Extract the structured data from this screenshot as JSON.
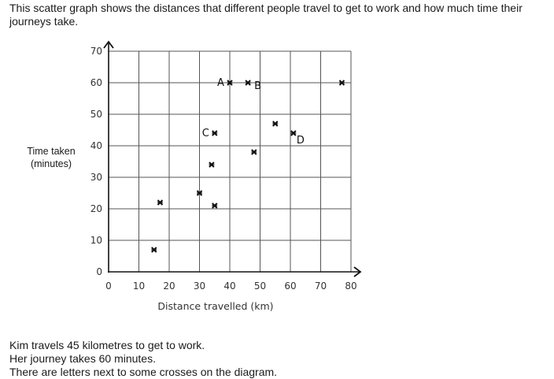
{
  "intro_text": "This scatter graph shows the distances that different people travel to get to work and how much time their journeys take.",
  "footer_lines": [
    "Kim travels 45 kilometres to get to work.",
    "Her journey takes 60 minutes.",
    "There are letters next to some crosses on the diagram."
  ],
  "chart_data": {
    "type": "scatter",
    "title": "",
    "xlabel": "Distance travelled (km)",
    "ylabel_lines": [
      "Time taken",
      "(minutes)"
    ],
    "xlim": [
      0,
      80
    ],
    "ylim": [
      0,
      70
    ],
    "xticks": [
      0,
      10,
      20,
      30,
      40,
      50,
      60,
      70,
      80
    ],
    "yticks": [
      0,
      10,
      20,
      30,
      40,
      50,
      60,
      70
    ],
    "grid": true,
    "colors": {
      "axis": "#111111",
      "grid": "#555555",
      "marker": "#111111"
    },
    "points": [
      {
        "x": 15,
        "y": 7,
        "label": ""
      },
      {
        "x": 17,
        "y": 22,
        "label": ""
      },
      {
        "x": 30,
        "y": 25,
        "label": ""
      },
      {
        "x": 35,
        "y": 21,
        "label": ""
      },
      {
        "x": 34,
        "y": 34,
        "label": ""
      },
      {
        "x": 35,
        "y": 44,
        "label": "C"
      },
      {
        "x": 40,
        "y": 60,
        "label": "A"
      },
      {
        "x": 46,
        "y": 60,
        "label": "B"
      },
      {
        "x": 48,
        "y": 38,
        "label": ""
      },
      {
        "x": 55,
        "y": 47,
        "label": ""
      },
      {
        "x": 61,
        "y": 44,
        "label": "D"
      },
      {
        "x": 77,
        "y": 60,
        "label": ""
      }
    ]
  }
}
